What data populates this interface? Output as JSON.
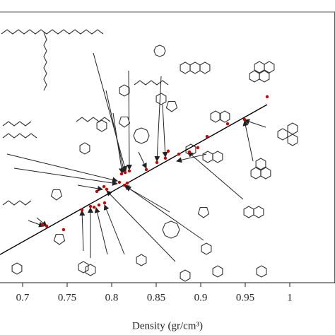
{
  "chart_data": {
    "type": "scatter",
    "x_label": "Density (gr/cm³)",
    "xlim": [
      0.6746,
      1.0508
    ],
    "ylim": [
      0,
      100
    ],
    "xticks": [
      0.7,
      0.75,
      0.8,
      0.85,
      0.9,
      0.95,
      1
    ],
    "series": [
      {
        "color": "#d00000",
        "x": [
          0.7222,
          0.727,
          0.746,
          0.7667,
          0.7762,
          0.7802,
          0.7857,
          0.7921,
          0.7913,
          0.7944,
          0.7833,
          0.8087,
          0.8111,
          0.8143,
          0.8175,
          0.8151,
          0.8198,
          0.8389,
          0.8508,
          0.8603,
          0.8635,
          0.8754,
          0.8873,
          0.8968,
          0.9071,
          0.9302,
          0.9492,
          0.9746
        ],
        "values": [
          21.4,
          20.9,
          19.6,
          26.9,
          28.2,
          27.9,
          28.7,
          29.5,
          35.5,
          34.5,
          33.7,
          37.1,
          40.2,
          36.0,
          36.8,
          40.7,
          41.3,
          41.8,
          44.4,
          46.0,
          48.6,
          47.5,
          48.3,
          49.9,
          54.0,
          58.7,
          60.3,
          68.7
        ]
      }
    ],
    "fit_line": {
      "color": "#000000",
      "x": [
        0.6746,
        0.9746
      ],
      "values": [
        10.4,
        65.8
      ]
    }
  }
}
